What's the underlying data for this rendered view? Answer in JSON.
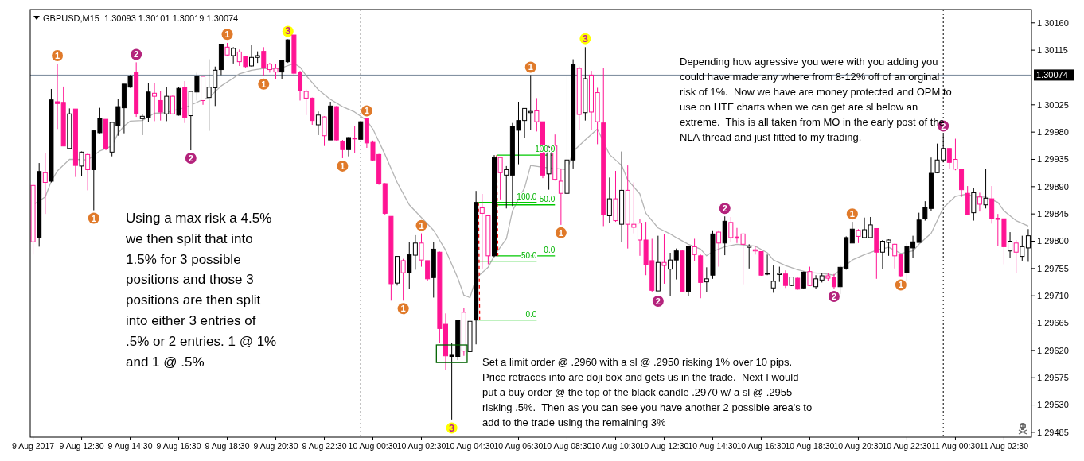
{
  "chart_data": {
    "type": "candlestick",
    "title": "GBPUSD,M15  1.30093 1.30101 1.30019 1.30074",
    "xlim": [
      "2017-08-09T10:23",
      "2017-08-11T03:38"
    ],
    "xticks": [
      {
        "value": "2017-08-09T10:30",
        "label": "9 Aug 2017"
      },
      {
        "value": "2017-08-09T12:30",
        "label": "9 Aug 12:30"
      },
      {
        "value": "2017-08-09T14:30",
        "label": "9 Aug 14:30"
      },
      {
        "value": "2017-08-09T16:30",
        "label": "9 Aug 16:30"
      },
      {
        "value": "2017-08-09T18:30",
        "label": "9 Aug 18:30"
      },
      {
        "value": "2017-08-09T20:30",
        "label": "9 Aug 20:30"
      },
      {
        "value": "2017-08-09T22:30",
        "label": "9 Aug 22:30"
      },
      {
        "value": "2017-08-10T00:30",
        "label": "10 Aug 00:30"
      },
      {
        "value": "2017-08-10T02:30",
        "label": "10 Aug 02:30"
      },
      {
        "value": "2017-08-10T04:30",
        "label": "10 Aug 04:30"
      },
      {
        "value": "2017-08-10T06:30",
        "label": "10 Aug 06:30"
      },
      {
        "value": "2017-08-10T08:30",
        "label": "10 Aug 08:30"
      },
      {
        "value": "2017-08-10T10:30",
        "label": "10 Aug 10:30"
      },
      {
        "value": "2017-08-10T12:30",
        "label": "10 Aug 12:30"
      },
      {
        "value": "2017-08-10T14:30",
        "label": "10 Aug 14:30"
      },
      {
        "value": "2017-08-10T16:30",
        "label": "10 Aug 16:30"
      },
      {
        "value": "2017-08-10T18:30",
        "label": "10 Aug 18:30"
      },
      {
        "value": "2017-08-10T20:30",
        "label": "10 Aug 20:30"
      },
      {
        "value": "2017-08-10T22:30",
        "label": "10 Aug 22:30"
      },
      {
        "value": "2017-08-11T00:30",
        "label": "11 Aug 00:30"
      },
      {
        "value": "2017-08-11T02:30",
        "label": "11 Aug 02:30"
      }
    ],
    "ylim": [
      1.29477,
      1.30182
    ],
    "yticks": [
      {
        "value": 1.3016,
        "label": "1.30160"
      },
      1.30115,
      1.30025,
      {
        "value": 1.2998,
        "label": "1.29980"
      },
      1.29935,
      {
        "value": 1.2989,
        "label": "1.29890"
      },
      1.29845,
      {
        "value": 1.298,
        "label": "1.29800"
      },
      1.29755,
      {
        "value": 1.2971,
        "label": "1.29710"
      },
      1.29665,
      {
        "value": 1.2962,
        "label": "1.29620"
      },
      1.29575,
      {
        "value": 1.2953,
        "label": "1.29530"
      },
      1.29485
    ],
    "ref_lines": [
      {
        "axis": "y",
        "value": 1.30074,
        "label": "1.30074",
        "color": "#778899",
        "line_style": "solid"
      },
      {
        "axis": "x",
        "value": "2017-08-10T00:00",
        "color": "#000000",
        "line_style": "dotted"
      },
      {
        "axis": "x",
        "value": "2017-08-11T00:00",
        "color": "#000000",
        "line_style": "dotted"
      }
    ],
    "annotations": [
      "Using a max risk a 4.5%\nwe then split that into\n1.5% for 3 possible\npositions and those 3\npositions are then split\ninto either 3 entries of\n.5% or 2 entries. 1 @ 1%\nand 1 @ .5%",
      "Set a limit order @ .2960 with a sl @ .2950 risking 1% over 10 pips.\nPrice retraces into are doji box and gets us in the trade.  Next I would\nput a buy order @ the top of the black candle .2970 w/ a sl @ .2955\nrisking .5%.  Then as you can see you have another 2 possible area's to\nadd to the trade using the remaining 3%",
      "Depending how agressive you were with you adding you\ncould have made any where from 8-12% off of an orginal\nrisk of 1%.  Now we have are money protected and OPM to\nuse on HTF charts when we can get are sl below an\nextreme.  This is all taken from MO in the early post of the\nNLA thread and just fitted to my trading.",
      {
        "text": "100.0",
        "x": "2017-08-10T07:15",
        "y": 1.29864
      },
      {
        "text": "50.0",
        "x": "2017-08-10T07:15",
        "y": 1.29767
      },
      {
        "text": "0.0",
        "x": "2017-08-10T07:15",
        "y": 1.2967
      },
      {
        "text": "100.0",
        "x": "2017-08-10T08:00",
        "y": 1.29942
      },
      {
        "text": "50.0",
        "x": "2017-08-10T08:00",
        "y": 1.2986
      },
      {
        "text": "0.0",
        "x": "2017-08-10T08:00",
        "y": 1.29776
      }
    ],
    "series": [
      {
        "type": "line",
        "color": "#b4b4b4",
        "line_style": "solid",
        "x": [
          "2017-08-09T10:30",
          "2017-08-09T11:00",
          "2017-08-09T11:15",
          "2017-08-09T11:30",
          "2017-08-09T12:00",
          "2017-08-09T12:15",
          "2017-08-09T12:45",
          "2017-08-09T13:15",
          "2017-08-09T13:45",
          "2017-08-09T14:00",
          "2017-08-09T14:15",
          "2017-08-09T14:30",
          "2017-08-09T15:00",
          "2017-08-09T15:30",
          "2017-08-09T16:00",
          "2017-08-09T16:15",
          "2017-08-09T16:45",
          "2017-08-09T17:15",
          "2017-08-09T17:30",
          "2017-08-09T17:45",
          "2017-08-09T18:15",
          "2017-08-09T18:45",
          "2017-08-09T19:00",
          "2017-08-09T19:30",
          "2017-08-09T20:00",
          "2017-08-09T20:30",
          "2017-08-09T20:45",
          "2017-08-09T21:15",
          "2017-08-09T21:30",
          "2017-08-09T21:45",
          "2017-08-09T22:15",
          "2017-08-09T22:45",
          "2017-08-09T23:15",
          "2017-08-09T23:45",
          "2017-08-10T00:15",
          "2017-08-10T00:30",
          "2017-08-10T01:00",
          "2017-08-10T01:30",
          "2017-08-10T02:00",
          "2017-08-10T02:30",
          "2017-08-10T03:00",
          "2017-08-10T03:30",
          "2017-08-10T04:00",
          "2017-08-10T04:15",
          "2017-08-10T04:30",
          "2017-08-10T04:45",
          "2017-08-10T05:15",
          "2017-08-10T05:30",
          "2017-08-10T06:00",
          "2017-08-10T06:15",
          "2017-08-10T06:45",
          "2017-08-10T07:00",
          "2017-08-10T07:30",
          "2017-08-10T08:00",
          "2017-08-10T08:30",
          "2017-08-10T08:45",
          "2017-08-10T09:15",
          "2017-08-10T09:45",
          "2017-08-10T10:15",
          "2017-08-10T10:45",
          "2017-08-10T11:00",
          "2017-08-10T11:30",
          "2017-08-10T11:45",
          "2017-08-10T12:15",
          "2017-08-10T12:45",
          "2017-08-10T13:00",
          "2017-08-10T13:30",
          "2017-08-10T14:00",
          "2017-08-10T14:15",
          "2017-08-10T14:30",
          "2017-08-10T15:00",
          "2017-08-10T15:30",
          "2017-08-10T16:15",
          "2017-08-10T16:45",
          "2017-08-10T17:00",
          "2017-08-10T17:30",
          "2017-08-10T18:00",
          "2017-08-10T18:30",
          "2017-08-10T19:00",
          "2017-08-10T19:30",
          "2017-08-10T19:45",
          "2017-08-10T20:15",
          "2017-08-10T20:45",
          "2017-08-10T21:15",
          "2017-08-10T21:45",
          "2017-08-10T22:15",
          "2017-08-10T22:45",
          "2017-08-10T23:00",
          "2017-08-10T23:30",
          "2017-08-11T00:00",
          "2017-08-11T00:30",
          "2017-08-11T01:00",
          "2017-08-11T01:15",
          "2017-08-11T01:45",
          "2017-08-11T02:15",
          "2017-08-11T02:30",
          "2017-08-11T03:00",
          "2017-08-11T03:30"
        ],
        "values": [
          1.2986,
          1.29873,
          1.29899,
          1.29916,
          1.29935,
          1.29935,
          1.29934,
          1.29949,
          1.29957,
          1.29978,
          1.2999,
          1.29998,
          1.29999,
          1.30011,
          1.30012,
          1.30015,
          1.3002,
          1.30029,
          1.30034,
          1.30037,
          1.30056,
          1.30069,
          1.30076,
          1.30082,
          1.30085,
          1.30084,
          1.30086,
          1.30093,
          1.30087,
          1.30073,
          1.3005,
          1.30034,
          1.30022,
          1.30013,
          1.29999,
          1.29985,
          1.29943,
          1.29897,
          1.2986,
          1.29839,
          1.29818,
          1.29785,
          1.29739,
          1.29711,
          1.29707,
          1.29739,
          1.29757,
          1.29776,
          1.29804,
          1.2985,
          1.29888,
          1.29925,
          1.29922,
          1.2992,
          1.29918,
          1.29948,
          1.29967,
          1.29985,
          1.29943,
          1.29925,
          1.29901,
          1.29878,
          1.29846,
          1.29822,
          1.29812,
          1.29806,
          1.29795,
          1.29787,
          1.29776,
          1.29783,
          1.29791,
          1.29795,
          1.29792,
          1.29781,
          1.29769,
          1.2976,
          1.29753,
          1.29748,
          1.29747,
          1.29744,
          1.29753,
          1.29769,
          1.29778,
          1.29785,
          1.2979,
          1.2978,
          1.29784,
          1.29795,
          1.29813,
          1.29855,
          1.29874,
          1.29878,
          1.29873,
          1.29873,
          1.29864,
          1.2985,
          1.29834,
          1.29825
        ]
      },
      {
        "type": "line",
        "color": "#00c800",
        "line_style": "solid",
        "x": [
          "2017-08-10T04:51",
          "2017-08-10T07:15"
        ],
        "values": [
          1.29864,
          1.29864
        ]
      },
      {
        "type": "line",
        "color": "#00c800",
        "line_style": "solid",
        "x": [
          "2017-08-10T04:51",
          "2017-08-10T07:15"
        ],
        "values": [
          1.29767,
          1.29767
        ]
      },
      {
        "type": "line",
        "color": "#00c800",
        "line_style": "solid",
        "x": [
          "2017-08-10T04:51",
          "2017-08-10T07:15"
        ],
        "values": [
          1.2967,
          1.2967
        ]
      },
      {
        "type": "line",
        "color": "#00c800",
        "line_style": "solid",
        "x": [
          "2017-08-10T05:36",
          "2017-08-10T08:00"
        ],
        "values": [
          1.29942,
          1.29942
        ]
      },
      {
        "type": "line",
        "color": "#00c800",
        "line_style": "solid",
        "x": [
          "2017-08-10T05:36",
          "2017-08-10T08:00"
        ],
        "values": [
          1.2986,
          1.2986
        ]
      },
      {
        "type": "line",
        "color": "#00c800",
        "line_style": "solid",
        "x": [
          "2017-08-10T05:36",
          "2017-08-10T08:00"
        ],
        "values": [
          1.29776,
          1.29776
        ]
      },
      {
        "type": "line",
        "color": "#ff0000",
        "line_style": "dotted",
        "x": [
          "2017-08-10T04:51",
          "2017-08-10T04:54"
        ],
        "values": [
          1.29864,
          1.2967
        ]
      },
      {
        "type": "line",
        "color": "#ff0000",
        "line_style": "dotted",
        "x": [
          "2017-08-10T05:36",
          "2017-08-10T05:39"
        ],
        "values": [
          1.29942,
          1.29776
        ]
      },
      {
        "color": "#000000",
        "x": [
          "2017-08-09T10:45",
          "2017-08-09T11:15",
          "2017-08-09T12:00",
          "2017-08-09T12:30",
          "2017-08-09T13:00",
          "2017-08-09T13:15",
          "2017-08-09T13:45",
          "2017-08-09T14:00",
          "2017-08-09T14:15",
          "2017-08-09T14:30",
          "2017-08-09T15:00",
          "2017-08-09T15:15",
          "2017-08-09T16:00",
          "2017-08-09T16:30",
          "2017-08-09T17:00",
          "2017-08-09T17:15",
          "2017-08-09T17:45",
          "2017-08-09T18:00",
          "2017-08-09T18:15",
          "2017-08-09T18:45",
          "2017-08-09T19:30",
          "2017-08-09T19:45",
          "2017-08-09T20:45",
          "2017-08-09T21:00",
          "2017-08-09T22:15",
          "2017-08-09T22:45",
          "2017-08-09T23:30",
          "2017-08-10T00:00",
          "2017-08-10T01:30",
          "2017-08-10T02:00",
          "2017-08-10T02:15",
          "2017-08-10T03:00",
          "2017-08-10T03:45",
          "2017-08-10T04:00",
          "2017-08-10T04:30",
          "2017-08-10T04:45",
          "2017-08-10T05:30",
          "2017-08-10T06:00",
          "2017-08-10T06:15",
          "2017-08-10T06:30",
          "2017-08-10T06:45",
          "2017-08-10T07:00",
          "2017-08-10T07:45",
          "2017-08-10T08:30",
          "2017-08-10T08:45",
          "2017-08-10T09:15",
          "2017-08-10T10:15",
          "2017-08-10T10:45",
          "2017-08-10T12:15",
          "2017-08-10T12:45",
          "2017-08-10T13:00",
          "2017-08-10T13:30",
          "2017-08-10T14:15",
          "2017-08-10T14:30",
          "2017-08-10T15:00",
          "2017-08-10T16:00",
          "2017-08-10T16:45",
          "2017-08-10T17:00",
          "2017-08-10T17:15",
          "2017-08-10T17:45",
          "2017-08-10T18:15",
          "2017-08-10T18:45",
          "2017-08-10T19:00",
          "2017-08-10T19:45",
          "2017-08-10T20:00",
          "2017-08-10T20:15",
          "2017-08-10T20:45",
          "2017-08-10T21:00",
          "2017-08-10T21:30",
          "2017-08-10T21:45",
          "2017-08-10T22:30",
          "2017-08-10T22:45",
          "2017-08-10T23:00",
          "2017-08-10T23:15",
          "2017-08-10T23:30",
          "2017-08-10T23:45",
          "2017-08-11T00:00",
          "2017-08-11T01:15",
          "2017-08-11T01:45",
          "2017-08-11T02:45",
          "2017-08-11T03:15",
          "2017-08-11T03:30"
        ],
        "ohlc": [
          [
            1.29806,
            1.29929,
            1.29791,
            1.29915
          ],
          [
            1.29899,
            1.30051,
            1.29897,
            1.30033
          ],
          [
            1.29953,
            1.30019,
            1.29953,
            1.3001
          ],
          [
            1.29924,
            1.29948,
            1.29907,
            1.29947
          ],
          [
            1.29918,
            1.29983,
            1.29851,
            1.29982
          ],
          [
            1.29979,
            1.3002,
            1.29978,
            1.30003
          ],
          [
            1.29947,
            1.29997,
            1.2994,
            1.29996
          ],
          [
            1.2999,
            1.30034,
            1.29974,
            1.30022
          ],
          [
            1.3002,
            1.30059,
            1.29978,
            1.30059
          ],
          [
            1.30054,
            1.30074,
            1.30053,
            1.30072
          ],
          [
            1.30002,
            1.30009,
            1.29975,
            1.30006
          ],
          [
            1.30004,
            1.30061,
            1.29997,
            1.30046
          ],
          [
            1.3001,
            1.30054,
            1.29998,
            1.30039
          ],
          [
            1.30008,
            1.30054,
            1.30007,
            1.30052
          ],
          [
            1.30007,
            1.30047,
            1.2995,
            1.30047
          ],
          [
            1.30046,
            1.30078,
            1.30032,
            1.30072
          ],
          [
            1.30037,
            1.301,
            1.29982,
            1.30054
          ],
          [
            1.30053,
            1.30088,
            1.30023,
            1.30082
          ],
          [
            1.30083,
            1.30125,
            1.30074,
            1.30125
          ],
          [
            1.30106,
            1.3012,
            1.30093,
            1.30118
          ],
          [
            1.30089,
            1.30123,
            1.30088,
            1.30103
          ],
          [
            1.30103,
            1.30113,
            1.30094,
            1.30106
          ],
          [
            1.30079,
            1.30099,
            1.30067,
            1.30098
          ],
          [
            1.30096,
            1.30133,
            1.30094,
            1.30132
          ],
          [
            1.29992,
            1.30014,
            1.29975,
            1.30008
          ],
          [
            1.29967,
            1.3003,
            1.29967,
            1.30023
          ],
          [
            1.29951,
            1.29972,
            1.2994,
            1.29971
          ],
          [
            1.29968,
            1.29997,
            1.29967,
            1.29997
          ],
          [
            1.29731,
            1.29775,
            1.29727,
            1.29775
          ],
          [
            1.29748,
            1.29799,
            1.29721,
            1.29778
          ],
          [
            1.29777,
            1.2981,
            1.29753,
            1.29797
          ],
          [
            1.2974,
            1.29799,
            1.29707,
            1.29787
          ],
          [
            1.29612,
            1.29632,
            1.29506,
            1.2961
          ],
          [
            1.2961,
            1.29669,
            1.29604,
            1.29669
          ],
          [
            1.29618,
            1.29841,
            1.29606,
            1.29668
          ],
          [
            1.2967,
            1.29883,
            1.2963,
            1.29864
          ],
          [
            1.29776,
            1.29942,
            1.29774,
            1.29938
          ],
          [
            1.29909,
            1.29924,
            1.29854,
            1.29918
          ],
          [
            1.29909,
            1.29995,
            1.29858,
            1.2999
          ],
          [
            1.29983,
            1.3003,
            1.29927,
            1.29999
          ],
          [
            1.29999,
            1.30019,
            1.29971,
            1.30019
          ],
          [
            1.30014,
            1.30074,
            1.29983,
            1.30012
          ],
          [
            1.29911,
            1.29957,
            1.29885,
            1.29955
          ],
          [
            1.29879,
            1.30074,
            1.29879,
            1.29934
          ],
          [
            1.29934,
            1.301,
            1.2992,
            1.30091
          ],
          [
            1.30012,
            1.3012,
            1.29999,
            1.30068
          ],
          [
            1.29842,
            1.29905,
            1.2983,
            1.2987
          ],
          [
            1.29828,
            1.29948,
            1.29798,
            1.29884
          ],
          [
            1.29718,
            1.29809,
            1.29718,
            1.29765
          ],
          [
            1.29754,
            1.29781,
            1.29709,
            1.29769
          ],
          [
            1.29769,
            1.29788,
            1.29737,
            1.29784
          ],
          [
            1.29717,
            1.29792,
            1.29709,
            1.29792
          ],
          [
            1.29733,
            1.29757,
            1.29716,
            1.29738
          ],
          [
            1.29744,
            1.29818,
            1.29738,
            1.29812
          ],
          [
            1.29797,
            1.29841,
            1.29777,
            1.29833
          ],
          [
            1.2979,
            1.29795,
            1.29755,
            1.29792
          ],
          [
            1.29747,
            1.29778,
            1.29744,
            1.29746
          ],
          [
            1.29723,
            1.2976,
            1.29715,
            1.29734
          ],
          [
            1.29745,
            1.29758,
            1.29733,
            1.29747
          ],
          [
            1.29727,
            1.29741,
            1.29726,
            1.29741
          ],
          [
            1.29723,
            1.2975,
            1.29721,
            1.29749
          ],
          [
            1.29725,
            1.29744,
            1.29722,
            1.29738
          ],
          [
            1.29736,
            1.29748,
            1.29732,
            1.29743
          ],
          [
            1.29725,
            1.2976,
            1.29713,
            1.29757
          ],
          [
            1.29755,
            1.29808,
            1.29753,
            1.29806
          ],
          [
            1.29797,
            1.29832,
            1.29797,
            1.2982
          ],
          [
            1.29806,
            1.29839,
            1.29806,
            1.29819
          ],
          [
            1.29806,
            1.2984,
            1.29805,
            1.29827
          ],
          [
            1.29782,
            1.29802,
            1.29754,
            1.298
          ],
          [
            1.29798,
            1.29803,
            1.29776,
            1.29802
          ],
          [
            1.29748,
            1.29797,
            1.29735,
            1.29791
          ],
          [
            1.29789,
            1.29809,
            1.29772,
            1.29799
          ],
          [
            1.29798,
            1.29847,
            1.29798,
            1.29835
          ],
          [
            1.29837,
            1.29866,
            1.29834,
            1.29856
          ],
          [
            1.29854,
            1.29938,
            1.2985,
            1.29912
          ],
          [
            1.29913,
            1.29961,
            1.29912,
            1.29934
          ],
          [
            1.29934,
            1.29977,
            1.2993,
            1.29953
          ],
          [
            1.29847,
            1.29888,
            1.29834,
            1.2988
          ],
          [
            1.2986,
            1.29919,
            1.29854,
            1.29871
          ],
          [
            1.29784,
            1.29815,
            1.29772,
            1.298
          ],
          [
            1.29775,
            1.29809,
            1.29768,
            1.29791
          ],
          [
            1.29789,
            1.2982,
            1.29766,
            1.29809
          ]
        ],
        "colors": [
          "#000000",
          "#000000",
          "#ffffff",
          "#ffffff",
          "#000000",
          "#000000",
          "#ffffff",
          "#000000",
          "#000000",
          "#000000",
          "#ffffff",
          "#000000",
          "#ffffff",
          "#000000",
          "#ffffff",
          "#000000",
          "#ffffff",
          "#ffffff",
          "#000000",
          "#ffffff",
          "#ffffff",
          "#ffffff",
          "#000000",
          "#000000",
          "#ffffff",
          "#000000",
          "#000000",
          "#000000",
          "#ffffff",
          "#000000",
          "#ffffff",
          "#000000",
          "#000000",
          "#000000",
          "#ffffff",
          "#000000",
          "#000000",
          "#ffffff",
          "#000000",
          "#000000",
          "#ffffff",
          "#ffffff",
          "#ffffff",
          "#ffffff",
          "#000000",
          "#ffffff",
          "#ffffff",
          "#ffffff",
          "#ffffff",
          "#ffffff",
          "#000000",
          "#000000",
          "#ffffff",
          "#000000",
          "#000000",
          "#ffffff",
          "#000000",
          "#ffffff",
          "#ffffff",
          "#ffffff",
          "#000000",
          "#ffffff",
          "#ffffff",
          "#000000",
          "#000000",
          "#000000",
          "#ffffff",
          "#ffffff",
          "#ffffff",
          "#ffffff",
          "#000000",
          "#000000",
          "#000000",
          "#000000",
          "#000000",
          "#ffffff",
          "#ffffff",
          "#ffffff",
          "#ffffff",
          "#ffffff",
          "#ffffff",
          "#ffffff"
        ]
      },
      {
        "color": "#ff1493",
        "x": [
          "2017-08-09T10:30",
          "2017-08-09T11:00",
          "2017-08-09T11:30",
          "2017-08-09T11:45",
          "2017-08-09T12:15",
          "2017-08-09T12:45",
          "2017-08-09T13:30",
          "2017-08-09T14:45",
          "2017-08-09T15:30",
          "2017-08-09T15:45",
          "2017-08-09T16:15",
          "2017-08-09T16:45",
          "2017-08-09T17:30",
          "2017-08-09T18:30",
          "2017-08-09T19:00",
          "2017-08-09T19:15",
          "2017-08-09T20:00",
          "2017-08-09T20:15",
          "2017-08-09T20:30",
          "2017-08-09T21:15",
          "2017-08-09T21:30",
          "2017-08-09T21:45",
          "2017-08-09T22:00",
          "2017-08-09T22:30",
          "2017-08-09T23:00",
          "2017-08-09T23:15",
          "2017-08-09T23:45",
          "2017-08-10T00:15",
          "2017-08-10T00:30",
          "2017-08-10T00:45",
          "2017-08-10T01:00",
          "2017-08-10T01:15",
          "2017-08-10T01:45",
          "2017-08-10T02:30",
          "2017-08-10T02:45",
          "2017-08-10T03:15",
          "2017-08-10T03:30",
          "2017-08-10T04:15",
          "2017-08-10T05:00",
          "2017-08-10T05:15",
          "2017-08-10T05:45",
          "2017-08-10T07:15",
          "2017-08-10T07:30",
          "2017-08-10T08:00",
          "2017-08-10T08:15",
          "2017-08-10T09:00",
          "2017-08-10T09:30",
          "2017-08-10T09:45",
          "2017-08-10T10:00",
          "2017-08-10T10:30",
          "2017-08-10T11:00",
          "2017-08-10T11:15",
          "2017-08-10T11:30",
          "2017-08-10T11:45",
          "2017-08-10T12:00",
          "2017-08-10T12:30",
          "2017-08-10T13:15",
          "2017-08-10T13:45",
          "2017-08-10T14:00",
          "2017-08-10T14:45",
          "2017-08-10T15:15",
          "2017-08-10T15:30",
          "2017-08-10T15:45",
          "2017-08-10T16:15",
          "2017-08-10T16:30",
          "2017-08-10T17:30",
          "2017-08-10T18:00",
          "2017-08-10T18:30",
          "2017-08-10T19:15",
          "2017-08-10T19:30",
          "2017-08-10T20:30",
          "2017-08-10T21:15",
          "2017-08-10T22:00",
          "2017-08-10T22:15",
          "2017-08-11T00:15",
          "2017-08-11T00:30",
          "2017-08-11T00:45",
          "2017-08-11T01:00",
          "2017-08-11T01:30",
          "2017-08-11T02:00",
          "2017-08-11T02:15",
          "2017-08-11T02:30",
          "2017-08-11T03:00"
        ],
        "ohlc": [
          [
            1.29892,
            1.29895,
            1.29778,
            1.29799
          ],
          [
            1.29913,
            1.29946,
            1.29845,
            1.29897
          ],
          [
            1.3003,
            1.30092,
            1.29985,
            1.30027
          ],
          [
            1.30029,
            1.30055,
            1.29957,
            1.29957
          ],
          [
            1.30018,
            1.30018,
            1.29906,
            1.29925
          ],
          [
            1.29943,
            1.29946,
            1.29884,
            1.29918
          ],
          [
            1.30001,
            1.30001,
            1.2995,
            1.29953
          ],
          [
            1.30078,
            1.30095,
            1.30005,
            1.30011
          ],
          [
            1.30044,
            1.30061,
            1.29998,
            1.30039
          ],
          [
            1.30032,
            1.30048,
            1.29999,
            1.30013
          ],
          [
            1.30039,
            1.3004,
            1.30009,
            1.3001
          ],
          [
            1.30053,
            1.30064,
            1.29995,
            1.30004
          ],
          [
            1.30072,
            1.30072,
            1.30025,
            1.30032
          ],
          [
            1.3012,
            1.30127,
            1.30106,
            1.30107
          ],
          [
            1.30112,
            1.30116,
            1.30089,
            1.30096
          ],
          [
            1.30104,
            1.30105,
            1.30086,
            1.30088
          ],
          [
            1.30113,
            1.3012,
            1.30073,
            1.30086
          ],
          [
            1.30092,
            1.30094,
            1.30078,
            1.30083
          ],
          [
            1.30085,
            1.30092,
            1.30067,
            1.30079
          ],
          [
            1.3014,
            1.3014,
            1.30074,
            1.30077
          ],
          [
            1.30079,
            1.30081,
            1.30032,
            1.30048
          ],
          [
            1.30047,
            1.3005,
            1.30008,
            1.30036
          ],
          [
            1.30036,
            1.30037,
            1.29992,
            1.29999
          ],
          [
            1.30005,
            1.30006,
            1.29957,
            1.29974
          ],
          [
            1.30022,
            1.30023,
            1.29966,
            1.29967
          ],
          [
            1.29965,
            1.29967,
            1.29937,
            1.29951
          ],
          [
            1.2997,
            1.2999,
            1.29945,
            1.29969
          ],
          [
            1.30002,
            1.30002,
            1.29954,
            1.29962
          ],
          [
            1.29963,
            1.29966,
            1.29932,
            1.29934
          ],
          [
            1.29943,
            1.29944,
            1.29893,
            1.29895
          ],
          [
            1.29895,
            1.29896,
            1.29844,
            1.29846
          ],
          [
            1.29841,
            1.29841,
            1.29702,
            1.2973
          ],
          [
            1.29768,
            1.29771,
            1.29702,
            1.29748
          ],
          [
            1.29797,
            1.29813,
            1.29758,
            1.29769
          ],
          [
            1.29768,
            1.29768,
            1.29734,
            1.29738
          ],
          [
            1.29782,
            1.29783,
            1.29632,
            1.29656
          ],
          [
            1.29663,
            1.29681,
            1.29588,
            1.29611
          ],
          [
            1.29683,
            1.2969,
            1.29611,
            1.29619
          ],
          [
            1.29855,
            1.29878,
            1.29755,
            1.29846
          ],
          [
            1.29842,
            1.29842,
            1.29762,
            1.29776
          ],
          [
            1.29938,
            1.29939,
            1.29869,
            1.29913
          ],
          [
            1.30015,
            1.30036,
            1.29981,
            1.29997
          ],
          [
            1.29997,
            1.29997,
            1.29904,
            1.29909
          ],
          [
            1.29957,
            1.29976,
            1.299,
            1.29902
          ],
          [
            1.29899,
            1.2992,
            1.29827,
            1.29879
          ],
          [
            1.30085,
            1.30088,
            1.29984,
            1.30009
          ],
          [
            1.30074,
            1.30081,
            1.29983,
            1.30013
          ],
          [
            1.30045,
            1.30053,
            1.2996,
            1.29997
          ],
          [
            1.29995,
            1.30085,
            1.29825,
            1.29844
          ],
          [
            1.2987,
            1.29916,
            1.29832,
            1.29834
          ],
          [
            1.29884,
            1.29925,
            1.29788,
            1.29828
          ],
          [
            1.29828,
            1.29897,
            1.29813,
            1.29823
          ],
          [
            1.2983,
            1.29837,
            1.29776,
            1.29802
          ],
          [
            1.29802,
            1.29832,
            1.29744,
            1.29761
          ],
          [
            1.29768,
            1.29804,
            1.29716,
            1.29719
          ],
          [
            1.29765,
            1.29812,
            1.2973,
            1.2976
          ],
          [
            1.29784,
            1.29785,
            1.29716,
            1.29717
          ],
          [
            1.29791,
            1.29804,
            1.29767,
            1.29778
          ],
          [
            1.29776,
            1.29778,
            1.29706,
            1.29732
          ],
          [
            1.29815,
            1.29818,
            1.29758,
            1.29797
          ],
          [
            1.29831,
            1.2984,
            1.29798,
            1.29806
          ],
          [
            1.29807,
            1.29822,
            1.29797,
            1.29805
          ],
          [
            1.29812,
            1.29812,
            1.29729,
            1.29795
          ],
          [
            1.29786,
            1.29792,
            1.29778,
            1.29784
          ],
          [
            1.29783,
            1.29783,
            1.29743,
            1.29744
          ],
          [
            1.29746,
            1.29752,
            1.29723,
            1.29727
          ],
          [
            1.29739,
            1.2974,
            1.2972,
            1.29721
          ],
          [
            1.2975,
            1.29758,
            1.29726,
            1.29727
          ],
          [
            1.29743,
            1.29748,
            1.29734,
            1.29739
          ],
          [
            1.29741,
            1.29746,
            1.29722,
            1.29725
          ],
          [
            1.29818,
            1.2982,
            1.29797,
            1.29808
          ],
          [
            1.29821,
            1.29821,
            1.29738,
            1.29782
          ],
          [
            1.29795,
            1.29796,
            1.29755,
            1.29776
          ],
          [
            1.29778,
            1.29778,
            1.29741,
            1.29743
          ],
          [
            1.29953,
            1.29953,
            1.29919,
            1.2993
          ],
          [
            1.29935,
            1.29969,
            1.29917,
            1.29919
          ],
          [
            1.29918,
            1.29918,
            1.29873,
            1.29885
          ],
          [
            1.29879,
            1.29891,
            1.29844,
            1.29844
          ],
          [
            1.29873,
            1.2988,
            1.29849,
            1.29861
          ],
          [
            1.2987,
            1.29891,
            1.29829,
            1.29837
          ],
          [
            1.29838,
            1.29845,
            1.29792,
            1.29836
          ],
          [
            1.29837,
            1.29837,
            1.29762,
            1.29791
          ],
          [
            1.29797,
            1.29802,
            1.29748,
            1.29782
          ]
        ],
        "colors": [
          "#ffffff",
          "#ffffff",
          "#ff1493",
          "#ff1493",
          "#ff1493",
          "#ffffff",
          "#ff1493",
          "#ff1493",
          "#ffffff",
          "#ff1493",
          "#ffffff",
          "#ff1493",
          "#ffffff",
          "#ffffff",
          "#ffffff",
          "#ff1493",
          "#ff1493",
          "#ffffff",
          "#ffffff",
          "#ff1493",
          "#ff1493",
          "#ffffff",
          "#ff1493",
          "#ffffff",
          "#ff1493",
          "#ff1493",
          "#ff1493",
          "#ff1493",
          "#ff1493",
          "#ff1493",
          "#ff1493",
          "#ff1493",
          "#ffffff",
          "#ffffff",
          "#ff1493",
          "#ff1493",
          "#ff1493",
          "#ffffff",
          "#ffffff",
          "#ffffff",
          "#ffffff",
          "#ffffff",
          "#ff1493",
          "#ffffff",
          "#ffffff",
          "#ffffff",
          "#ffffff",
          "#ffffff",
          "#ff1493",
          "#ffffff",
          "#ffffff",
          "#ffffff",
          "#ffffff",
          "#ff1493",
          "#ff1493",
          "#ffffff",
          "#ff1493",
          "#ffffff",
          "#ff1493",
          "#ffffff",
          "#ffffff",
          "#ff1493",
          "#ffffff",
          "#ffffff",
          "#ff1493",
          "#ff1493",
          "#ff1493",
          "#ffffff",
          "#ffffff",
          "#ff1493",
          "#ffffff",
          "#ff1493",
          "#ffffff",
          "#ff1493",
          "#ff1493",
          "#ffffff",
          "#ff1493",
          "#ff1493",
          "#ffffff",
          "#ff1493",
          "#ff1493",
          "#ff1493",
          "#ffffff"
        ]
      },
      {
        "type": "scatter",
        "name": "1",
        "color": "#e07a2a",
        "marker": "circle",
        "x": [
          "2017-08-09T11:30",
          "2017-08-09T13:00",
          "2017-08-09T18:30",
          "2017-08-09T20:00",
          "2017-08-09T23:15",
          "2017-08-10T00:15",
          "2017-08-10T01:45",
          "2017-08-10T02:30",
          "2017-08-10T07:00",
          "2017-08-10T08:15",
          "2017-08-10T20:15",
          "2017-08-10T22:15"
        ],
        "values": [
          1.30106,
          1.29838,
          1.30141,
          1.30059,
          1.29924,
          1.30015,
          1.29689,
          1.29826,
          1.30087,
          1.29814,
          1.29845,
          1.29728
        ]
      },
      {
        "type": "scatter",
        "name": "2",
        "color": "#b4237c",
        "marker": "circle",
        "x": [
          "2017-08-09T14:45",
          "2017-08-09T17:00",
          "2017-08-10T12:15",
          "2017-08-10T15:00",
          "2017-08-10T19:30",
          "2017-08-11T00:00"
        ],
        "values": [
          1.30108,
          1.29937,
          1.29701,
          1.29854,
          1.29709,
          1.2999
        ]
      },
      {
        "type": "scatter",
        "name": "3",
        "color": "#ffff00",
        "marker": "circle",
        "x": [
          "2017-08-09T21:00",
          "2017-08-10T03:45",
          "2017-08-10T09:15"
        ],
        "values": [
          1.30146,
          1.29492,
          1.30134
        ]
      }
    ]
  }
}
